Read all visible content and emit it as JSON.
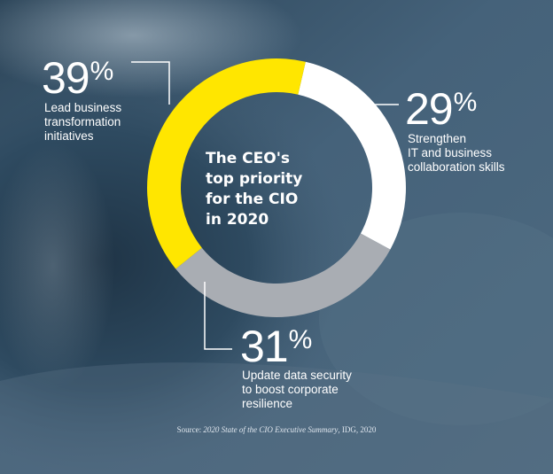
{
  "chart_data": {
    "type": "pie",
    "variant": "donut",
    "title": "The CEO's\ntop priority\nfor the CIO\nin 2020",
    "slices": [
      {
        "label": "Strengthen\nIT and business\ncollaboration skills",
        "value": 29,
        "display": "29",
        "color": "#ffffff"
      },
      {
        "label": "Update data security\nto boost corporate\nresilience",
        "value": 31,
        "display": "31",
        "color": "#a9adb3"
      },
      {
        "label": "Lead business\ntransformation\ninitiatives",
        "value": 39,
        "display": "39",
        "color": "#ffe600"
      }
    ],
    "unit_symbol": "%"
  },
  "source": {
    "prefix": "Source: ",
    "title": "2020 State of the CIO Executive Summary",
    "suffix": ", IDG, 2020"
  },
  "colors": {
    "background": "#3f5a70",
    "leader_line": "#ffffff",
    "accent": "#ffe600"
  }
}
